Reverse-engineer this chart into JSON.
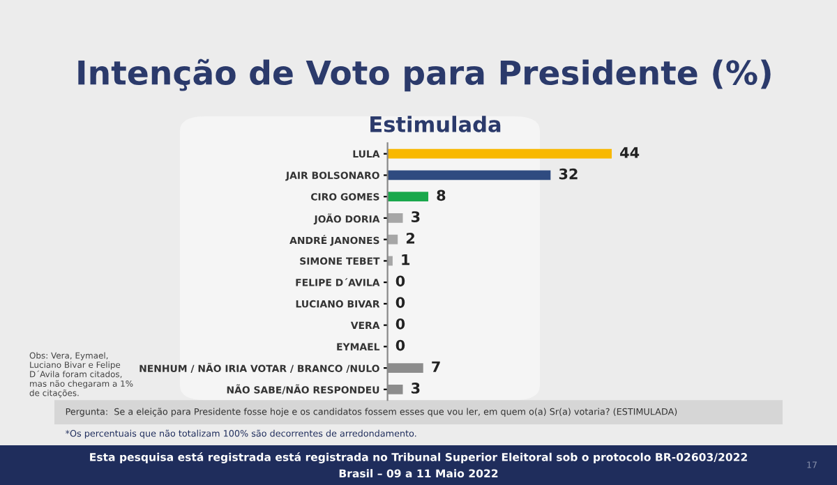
{
  "chart_data": {
    "type": "bar",
    "orientation": "horizontal",
    "title": "Intenção de Voto para Presidente (%)",
    "subtitle": "Estimulada",
    "categories": [
      "LULA",
      "JAIR BOLSONARO",
      "CIRO GOMES",
      "JOÃO DORIA",
      "ANDRÉ JANONES",
      "SIMONE TEBET",
      "FELIPE D´AVILA",
      "LUCIANO BIVAR",
      "VERA",
      "EYMAEL",
      "NENHUM / NÃO IRIA VOTAR / BRANCO /NULO",
      "NÃO SABE/NÃO RESPONDEU"
    ],
    "values": [
      44,
      32,
      8,
      3,
      2,
      1,
      0,
      0,
      0,
      0,
      7,
      3
    ],
    "colors": [
      "#f8b800",
      "#2f4b80",
      "#1aa84c",
      "#a6a6a6",
      "#a6a6a6",
      "#a6a6a6",
      "#a6a6a6",
      "#a6a6a6",
      "#a6a6a6",
      "#a6a6a6",
      "#8c8c8c",
      "#8c8c8c"
    ],
    "data_labels": true,
    "grid": false,
    "legend": false,
    "annotations": [
      "Obs: Vera, Eymael, Luciano Bivar e Felipe D´Avila foram citados, mas não chegaram a 1% de citações.",
      "Pergunta:  Se a eleição para Presidente fosse hoje e os candidatos fossem esses que vou ler, em quem o(a) Sr(a) votaria? (ESTIMULADA)",
      "*Os percentuais que não totalizam 100% são decorrentes de arredondamento.",
      "Esta pesquisa está registrada está registrada no Tribunal Superior Eleitoral sob o protocolo BR-02603/2022",
      "Brasil – 09 a 11 Maio 2022",
      "17"
    ]
  }
}
